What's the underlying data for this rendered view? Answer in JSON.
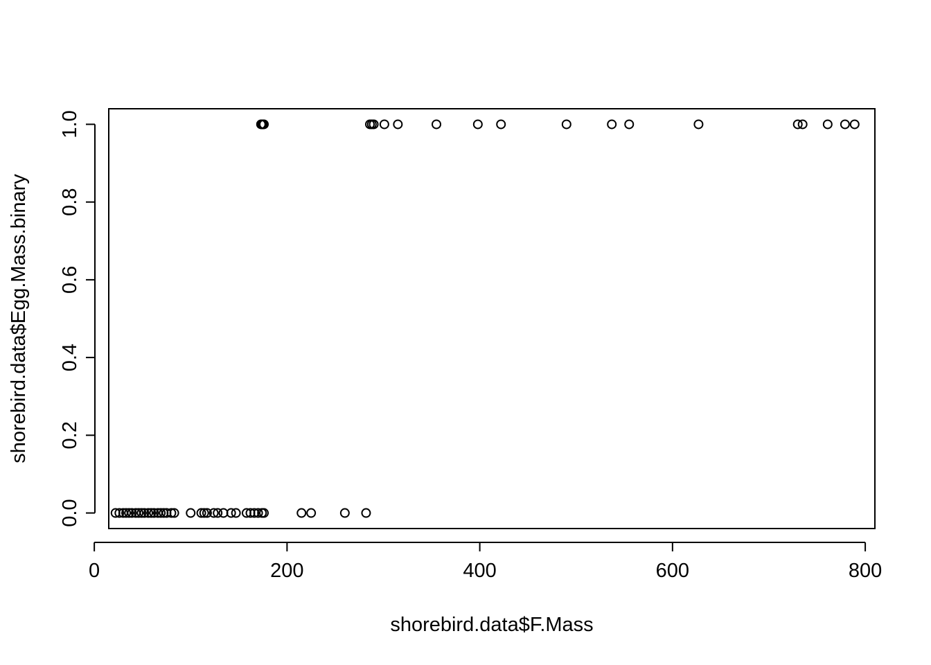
{
  "chart_data": {
    "type": "scatter",
    "xlabel": "shorebird.data$F.Mass",
    "ylabel": "shorebird.data$Egg.Mass.binary",
    "xlim": [
      15,
      810
    ],
    "ylim": [
      -0.04,
      1.04
    ],
    "x_ticks": [
      0,
      200,
      400,
      600,
      800
    ],
    "y_ticks": [
      0.0,
      0.2,
      0.4,
      0.6,
      0.8,
      1.0
    ],
    "x_tick_labels": [
      "0",
      "200",
      "400",
      "600",
      "800"
    ],
    "y_tick_labels": [
      "0.0",
      "0.2",
      "0.4",
      "0.6",
      "0.8",
      "1.0"
    ],
    "marker": "open-circle",
    "color": "#000000",
    "points": [
      {
        "x": 22,
        "y": 0
      },
      {
        "x": 26,
        "y": 0
      },
      {
        "x": 30,
        "y": 0
      },
      {
        "x": 33,
        "y": 0
      },
      {
        "x": 36,
        "y": 0
      },
      {
        "x": 39,
        "y": 0
      },
      {
        "x": 43,
        "y": 0
      },
      {
        "x": 46,
        "y": 0
      },
      {
        "x": 49,
        "y": 0
      },
      {
        "x": 52,
        "y": 0
      },
      {
        "x": 56,
        "y": 0
      },
      {
        "x": 59,
        "y": 0
      },
      {
        "x": 62,
        "y": 0
      },
      {
        "x": 66,
        "y": 0
      },
      {
        "x": 69,
        "y": 0
      },
      {
        "x": 72,
        "y": 0
      },
      {
        "x": 75,
        "y": 0
      },
      {
        "x": 80,
        "y": 0
      },
      {
        "x": 83,
        "y": 0
      },
      {
        "x": 100,
        "y": 0
      },
      {
        "x": 111,
        "y": 0
      },
      {
        "x": 114,
        "y": 0
      },
      {
        "x": 117,
        "y": 0
      },
      {
        "x": 124,
        "y": 0
      },
      {
        "x": 128,
        "y": 0
      },
      {
        "x": 134,
        "y": 0
      },
      {
        "x": 142,
        "y": 0
      },
      {
        "x": 147,
        "y": 0
      },
      {
        "x": 158,
        "y": 0
      },
      {
        "x": 162,
        "y": 0
      },
      {
        "x": 166,
        "y": 0
      },
      {
        "x": 170,
        "y": 0
      },
      {
        "x": 174,
        "y": 0
      },
      {
        "x": 176,
        "y": 0
      },
      {
        "x": 215,
        "y": 0
      },
      {
        "x": 225,
        "y": 0
      },
      {
        "x": 260,
        "y": 0
      },
      {
        "x": 282,
        "y": 0
      },
      {
        "x": 173,
        "y": 1
      },
      {
        "x": 174,
        "y": 1
      },
      {
        "x": 175,
        "y": 1
      },
      {
        "x": 176,
        "y": 1
      },
      {
        "x": 286,
        "y": 1
      },
      {
        "x": 288,
        "y": 1
      },
      {
        "x": 290,
        "y": 1
      },
      {
        "x": 301,
        "y": 1
      },
      {
        "x": 315,
        "y": 1
      },
      {
        "x": 355,
        "y": 1
      },
      {
        "x": 398,
        "y": 1
      },
      {
        "x": 422,
        "y": 1
      },
      {
        "x": 490,
        "y": 1
      },
      {
        "x": 537,
        "y": 1
      },
      {
        "x": 555,
        "y": 1
      },
      {
        "x": 627,
        "y": 1
      },
      {
        "x": 730,
        "y": 1
      },
      {
        "x": 735,
        "y": 1
      },
      {
        "x": 761,
        "y": 1
      },
      {
        "x": 779,
        "y": 1
      },
      {
        "x": 789,
        "y": 1
      }
    ]
  }
}
